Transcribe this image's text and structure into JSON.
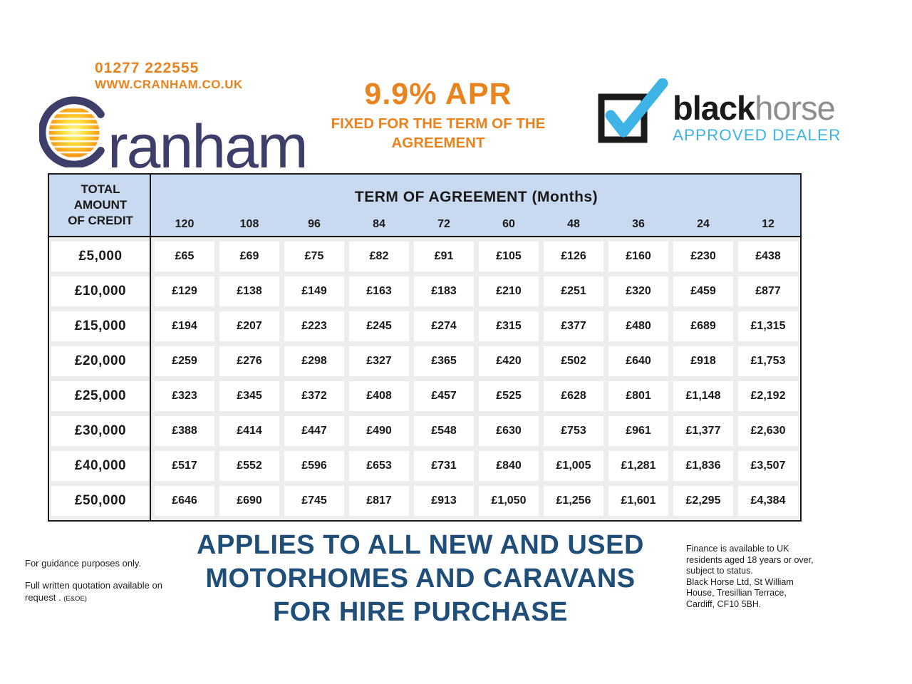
{
  "header": {
    "phone": "01277 222555",
    "website": "WWW.CRANHAM.CO.UK",
    "brand_suffix": "ranham",
    "apr_title": "9.9% APR",
    "apr_sub": "FIXED FOR THE TERM OF THE\nAGREEMENT",
    "blackhorse": {
      "word_black": "black",
      "word_horse": "horse",
      "approved": "APPROVED DEALER"
    }
  },
  "table": {
    "corner_label": "TOTAL\nAMOUNT\nOF CREDIT",
    "term_header": "TERM OF AGREEMENT (Months)",
    "months": [
      "120",
      "108",
      "96",
      "84",
      "72",
      "60",
      "48",
      "36",
      "24",
      "12"
    ],
    "rows": [
      {
        "credit": "£5,000",
        "payments": [
          "£65",
          "£69",
          "£75",
          "£82",
          "£91",
          "£105",
          "£126",
          "£160",
          "£230",
          "£438"
        ]
      },
      {
        "credit": "£10,000",
        "payments": [
          "£129",
          "£138",
          "£149",
          "£163",
          "£183",
          "£210",
          "£251",
          "£320",
          "£459",
          "£877"
        ]
      },
      {
        "credit": "£15,000",
        "payments": [
          "£194",
          "£207",
          "£223",
          "£245",
          "£274",
          "£315",
          "£377",
          "£480",
          "£689",
          "£1,315"
        ]
      },
      {
        "credit": "£20,000",
        "payments": [
          "£259",
          "£276",
          "£298",
          "£327",
          "£365",
          "£420",
          "£502",
          "£640",
          "£918",
          "£1,753"
        ]
      },
      {
        "credit": "£25,000",
        "payments": [
          "£323",
          "£345",
          "£372",
          "£408",
          "£457",
          "£525",
          "£628",
          "£801",
          "£1,148",
          "£2,192"
        ]
      },
      {
        "credit": "£30,000",
        "payments": [
          "£388",
          "£414",
          "£447",
          "£490",
          "£548",
          "£630",
          "£753",
          "£961",
          "£1,377",
          "£2,630"
        ]
      },
      {
        "credit": "£40,000",
        "payments": [
          "£517",
          "£552",
          "£596",
          "£653",
          "£731",
          "£840",
          "£1,005",
          "£1,281",
          "£1,836",
          "£3,507"
        ]
      },
      {
        "credit": "£50,000",
        "payments": [
          "£646",
          "£690",
          "£745",
          "£817",
          "£913",
          "£1,050",
          "£1,256",
          "£1,601",
          "£2,295",
          "£4,384"
        ]
      }
    ]
  },
  "footer": {
    "heading": "APPLIES TO ALL NEW AND USED\nMOTORHOMES AND CARAVANS\nFOR HIRE PURCHASE",
    "guidance": "For guidance purposes only.",
    "quotation": "Full written quotation available on\nrequest .",
    "eoe": "(E&OE)",
    "finance_terms": "Finance is available to UK\nresidents aged 18 years or over,\nsubject to status.\nBlack Horse Ltd, St William\nHouse, Tresillian Terrace,\nCardiff, CF10 5BH."
  },
  "colors": {
    "orange": "#E8831D",
    "logo_navy": "#3E3E6B",
    "heading_navy": "#1F4E79",
    "header_blue": "#C9D9F0",
    "grid_gray": "#EDEDED",
    "border_dark": "#1A1A1A",
    "blackhorse_blue": "#3DB4E5",
    "horse_gray": "#8E8E8E"
  }
}
